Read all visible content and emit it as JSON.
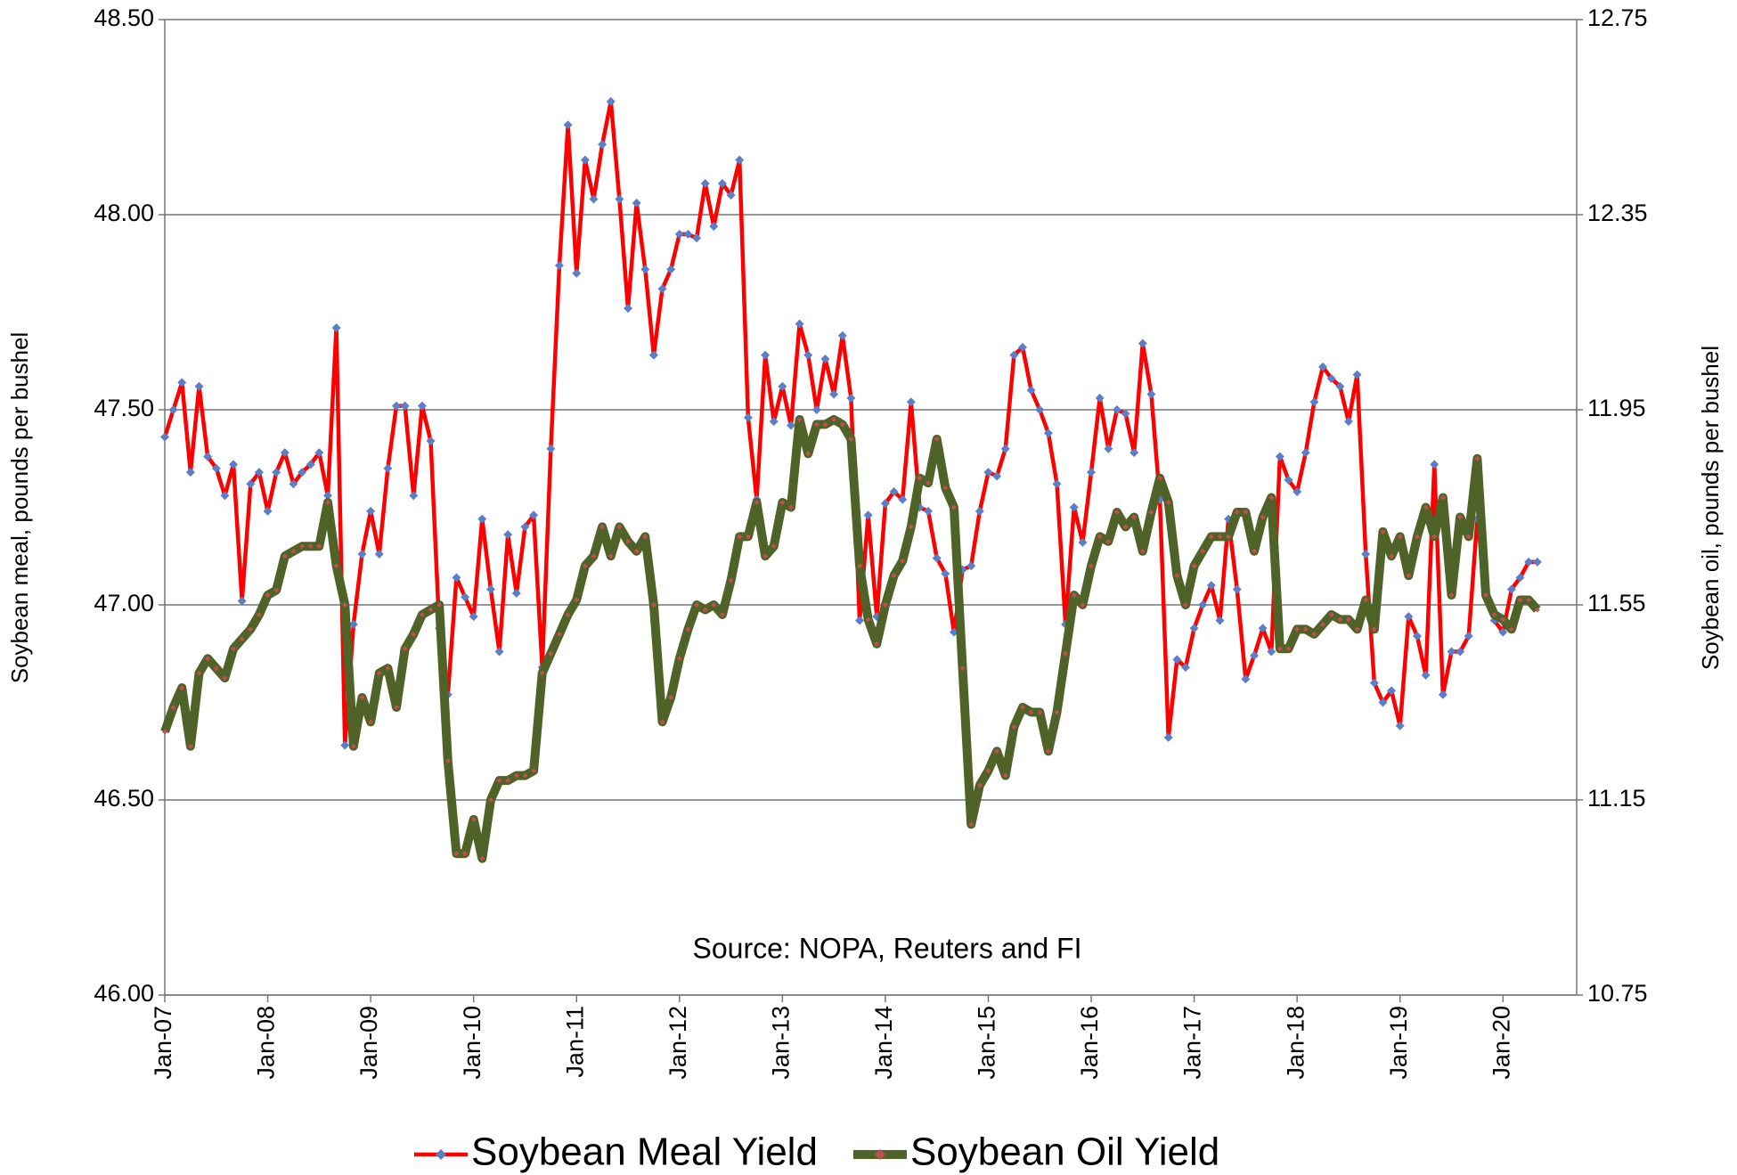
{
  "chart_data": {
    "type": "line",
    "annotation": "Source: NOPA, Reuters and FI",
    "ylabel": "Soybean meal, pounds per bushel",
    "y2label": "Soybean oil, pounds per bushel",
    "categories": [
      "Jan-07",
      null,
      null,
      null,
      null,
      null,
      null,
      null,
      null,
      null,
      null,
      null,
      "Jan-08",
      null,
      null,
      null,
      null,
      null,
      null,
      null,
      null,
      null,
      null,
      null,
      "Jan-09",
      null,
      null,
      null,
      null,
      null,
      null,
      null,
      null,
      null,
      null,
      null,
      "Jan-10",
      null,
      null,
      null,
      null,
      null,
      null,
      null,
      null,
      null,
      null,
      null,
      "Jan-11",
      null,
      null,
      null,
      null,
      null,
      null,
      null,
      null,
      null,
      null,
      null,
      "Jan-12",
      null,
      null,
      null,
      null,
      null,
      null,
      null,
      null,
      null,
      null,
      null,
      "Jan-13",
      null,
      null,
      null,
      null,
      null,
      null,
      null,
      null,
      null,
      null,
      null,
      "Jan-14",
      null,
      null,
      null,
      null,
      null,
      null,
      null,
      null,
      null,
      null,
      null,
      "Jan-15",
      null,
      null,
      null,
      null,
      null,
      null,
      null,
      null,
      null,
      null,
      null,
      "Jan-16",
      null,
      null,
      null,
      null,
      null,
      null,
      null,
      null,
      null,
      null,
      null,
      "Jan-17",
      null,
      null,
      null,
      null,
      null,
      null,
      null,
      null,
      null,
      null,
      null,
      "Jan-18",
      null,
      null,
      null,
      null,
      null,
      null,
      null,
      null,
      null,
      null,
      null,
      "Jan-19",
      null,
      null,
      null,
      null,
      null,
      null,
      null,
      null,
      null,
      null,
      null,
      "Jan-20",
      null,
      null,
      null,
      null
    ],
    "series": [
      {
        "name": "Soybean Meal Yield",
        "color": "#ff0000",
        "marker_color": "#5b7fc7",
        "values": [
          47.43,
          47.5,
          47.57,
          47.34,
          47.56,
          47.38,
          47.35,
          47.28,
          47.36,
          47.01,
          47.31,
          47.34,
          47.24,
          47.34,
          47.39,
          47.31,
          47.34,
          47.36,
          47.39,
          47.28,
          47.71,
          46.64,
          46.95,
          47.13,
          47.24,
          47.13,
          47.35,
          47.51,
          47.51,
          47.28,
          47.51,
          47.42,
          46.94,
          46.77,
          47.07,
          47.02,
          46.97,
          47.22,
          47.04,
          46.88,
          47.18,
          47.03,
          47.2,
          47.23,
          46.84,
          47.4,
          47.87,
          48.23,
          47.85,
          48.14,
          48.04,
          48.18,
          48.29,
          48.04,
          47.76,
          48.03,
          47.86,
          47.64,
          47.81,
          47.86,
          47.95,
          47.95,
          47.94,
          48.08,
          47.97,
          48.08,
          48.05,
          48.14,
          47.48,
          47.27,
          47.64,
          47.47,
          47.56,
          47.46,
          47.72,
          47.64,
          47.5,
          47.63,
          47.54,
          47.69,
          47.53,
          46.96,
          47.23,
          46.97,
          47.26,
          47.29,
          47.27,
          47.52,
          47.25,
          47.24,
          47.12,
          47.08,
          46.93,
          47.09,
          47.1,
          47.24,
          47.34,
          47.33,
          47.4,
          47.64,
          47.66,
          47.55,
          47.5,
          47.44,
          47.31,
          46.95,
          47.25,
          47.16,
          47.34,
          47.53,
          47.4,
          47.5,
          47.49,
          47.39,
          47.67,
          47.54,
          47.27,
          46.66,
          46.86,
          46.84,
          46.94,
          47.0,
          47.05,
          46.96,
          47.22,
          47.04,
          46.81,
          46.87,
          46.94,
          46.88,
          47.38,
          47.32,
          47.29,
          47.39,
          47.52,
          47.61,
          47.58,
          47.56,
          47.47,
          47.59,
          47.13,
          46.8,
          46.75,
          46.78,
          46.69,
          46.97,
          46.92,
          46.82,
          47.36,
          46.77,
          46.88,
          46.88,
          46.92,
          47.22,
          47.04,
          46.96,
          46.93,
          47.04,
          47.07,
          47.11,
          47.11
        ]
      },
      {
        "name": "Soybean Oil Yield",
        "color": "#4f6228",
        "marker_color": "#c0504d",
        "axis": "y2",
        "values": [
          11.29,
          11.34,
          11.38,
          11.26,
          11.41,
          11.44,
          11.42,
          11.4,
          11.46,
          11.48,
          11.5,
          11.53,
          11.57,
          11.58,
          11.65,
          11.66,
          11.67,
          11.67,
          11.67,
          11.76,
          11.63,
          11.55,
          11.26,
          11.36,
          11.31,
          11.41,
          11.42,
          11.34,
          11.46,
          11.49,
          11.53,
          11.54,
          11.55,
          11.23,
          11.04,
          11.04,
          11.11,
          11.03,
          11.15,
          11.19,
          11.19,
          11.2,
          11.2,
          11.21,
          11.41,
          11.45,
          11.49,
          11.53,
          11.56,
          11.63,
          11.65,
          11.71,
          11.65,
          11.71,
          11.68,
          11.66,
          11.69,
          11.55,
          11.31,
          11.36,
          11.44,
          11.5,
          11.55,
          11.54,
          11.55,
          11.53,
          11.6,
          11.69,
          11.69,
          11.76,
          11.65,
          11.67,
          11.76,
          11.75,
          11.93,
          11.86,
          11.92,
          11.92,
          11.93,
          11.92,
          11.89,
          11.63,
          11.52,
          11.47,
          11.55,
          11.61,
          11.64,
          11.71,
          11.81,
          11.8,
          11.89,
          11.79,
          11.75,
          11.42,
          11.1,
          11.18,
          11.21,
          11.25,
          11.2,
          11.3,
          11.34,
          11.33,
          11.33,
          11.25,
          11.33,
          11.45,
          11.57,
          11.55,
          11.63,
          11.69,
          11.68,
          11.74,
          11.71,
          11.73,
          11.66,
          11.74,
          11.81,
          11.76,
          11.61,
          11.55,
          11.63,
          11.66,
          11.69,
          11.69,
          11.69,
          11.74,
          11.74,
          11.66,
          11.73,
          11.77,
          11.46,
          11.46,
          11.5,
          11.5,
          11.49,
          11.51,
          11.53,
          11.52,
          11.52,
          11.5,
          11.56,
          11.5,
          11.7,
          11.65,
          11.69,
          11.61,
          11.69,
          11.75,
          11.69,
          11.77,
          11.57,
          11.73,
          11.69,
          11.85,
          11.57,
          11.53,
          11.52,
          11.5,
          11.56,
          11.56,
          11.54
        ]
      }
    ],
    "ylim": [
      46,
      48.5
    ],
    "yticks": [
      {
        "value": 46,
        "label": "46.00"
      },
      {
        "value": 46.5,
        "label": "46.50"
      },
      {
        "value": 47,
        "label": "47.00"
      },
      {
        "value": 47.5,
        "label": "47.50"
      },
      {
        "value": 48,
        "label": "48.00"
      },
      {
        "value": 48.5,
        "label": "48.50"
      }
    ],
    "y2lim": [
      10.75,
      12.75
    ],
    "y2ticks": [
      10.75,
      11.15,
      11.55,
      11.95,
      12.35,
      12.75
    ],
    "grid": true,
    "legend": "bottom"
  }
}
